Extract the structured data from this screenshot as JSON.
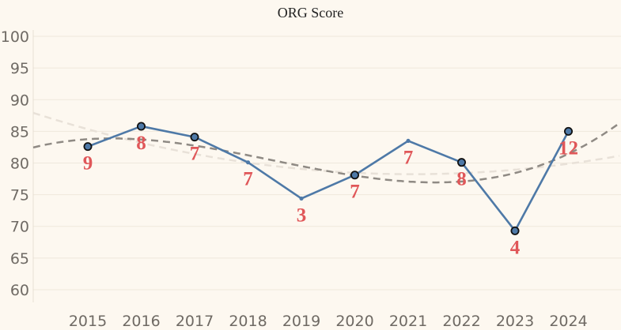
{
  "chart_data": {
    "type": "line",
    "title": "ORG Score",
    "xlabel": "",
    "ylabel": "",
    "x": [
      "2015",
      "2016",
      "2017",
      "2018",
      "2019",
      "2020",
      "2021",
      "2022",
      "2023",
      "2024"
    ],
    "yticks": [
      "60",
      "65",
      "70",
      "75",
      "80",
      "85",
      "90",
      "95",
      "100"
    ],
    "ylim": [
      58,
      101
    ],
    "grid": true,
    "series": [
      {
        "name": "ORG Score",
        "values": [
          82.6,
          85.8,
          84.1,
          80.1,
          74.4,
          78.1,
          83.5,
          80.1,
          69.3,
          85.0
        ],
        "color": "#4e79a7",
        "markers": [
          true,
          true,
          true,
          false,
          false,
          true,
          false,
          true,
          true,
          true
        ],
        "labels": [
          "9",
          "8",
          "7",
          "7",
          "3",
          "7",
          "7",
          "8",
          "4",
          "12"
        ]
      }
    ],
    "trendlines": [
      {
        "name": "trend-cubic",
        "style": "dashed",
        "color": "#8f8a84",
        "degree": 3
      },
      {
        "name": "trend-quadratic",
        "style": "dashed",
        "color": "#e8e1d8",
        "degree": 2
      }
    ],
    "label_color": "#e05759"
  }
}
